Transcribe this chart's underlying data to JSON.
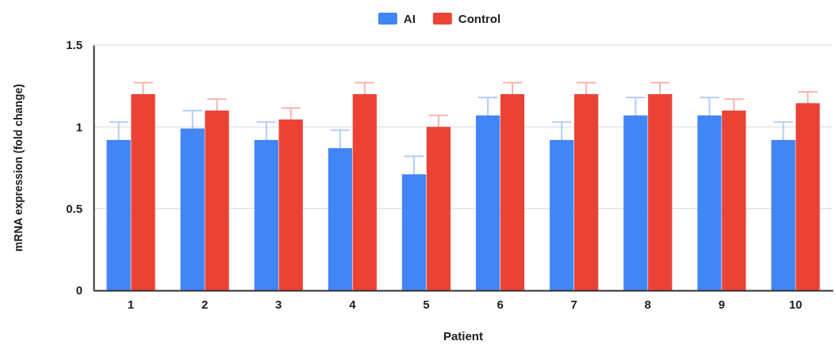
{
  "chart_data": {
    "type": "bar",
    "xlabel": "Patient",
    "ylabel": "mRNA expression (fold change)",
    "categories": [
      "1",
      "2",
      "3",
      "4",
      "5",
      "6",
      "7",
      "8",
      "9",
      "10"
    ],
    "series": [
      {
        "name": "AI",
        "color": "#4285f4",
        "values": [
          0.92,
          0.99,
          0.92,
          0.87,
          0.71,
          1.07,
          0.92,
          1.07,
          1.07,
          0.92
        ],
        "errors": [
          0.11,
          0.11,
          0.11,
          0.11,
          0.11,
          0.11,
          0.11,
          0.11,
          0.11,
          0.11
        ]
      },
      {
        "name": "Control",
        "color": "#ea4335",
        "values": [
          1.2,
          1.1,
          1.045,
          1.2,
          1.0,
          1.2,
          1.2,
          1.2,
          1.1,
          1.145
        ],
        "errors": [
          0.07,
          0.07,
          0.07,
          0.07,
          0.07,
          0.07,
          0.07,
          0.07,
          0.07,
          0.07
        ]
      }
    ],
    "ylim": [
      0,
      1.5
    ],
    "yticks": [
      0,
      0.5,
      1,
      1.5
    ],
    "grid": "y",
    "legend": "top"
  }
}
